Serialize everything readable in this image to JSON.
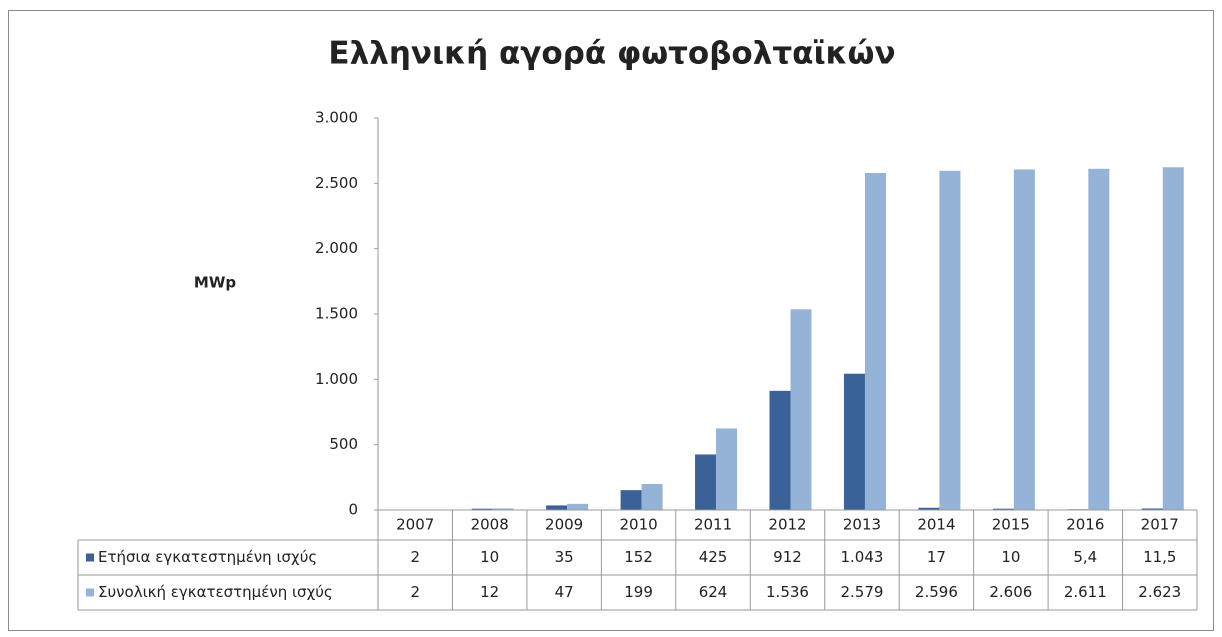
{
  "chart_data": {
    "type": "bar",
    "title": "Ελληνική αγορά φωτοβολταϊκών",
    "y_label": "MWp",
    "categories": [
      "2007",
      "2008",
      "2009",
      "2010",
      "2011",
      "2012",
      "2013",
      "2014",
      "2015",
      "2016",
      "2017"
    ],
    "series": [
      {
        "name": "Ετήσια εγκατεστημένη ισχύς",
        "color": "#3a6298",
        "values": [
          2,
          10,
          35,
          152,
          425,
          912,
          1043,
          17,
          10,
          5.4,
          11.5
        ],
        "value_labels": [
          "2",
          "10",
          "35",
          "152",
          "425",
          "912",
          "1.043",
          "17",
          "10",
          "5,4",
          "11,5"
        ]
      },
      {
        "name": "Συνολική εγκατεστημένη ισχύς",
        "color": "#95b3d7",
        "values": [
          2,
          12,
          47,
          199,
          624,
          1536,
          2579,
          2596,
          2606,
          2611,
          2623
        ],
        "value_labels": [
          "2",
          "12",
          "47",
          "199",
          "624",
          "1.536",
          "2.579",
          "2.596",
          "2.606",
          "2.611",
          "2.623"
        ]
      }
    ],
    "ylim": [
      0,
      3000
    ],
    "yticks": [
      0,
      500,
      {
        "value": 1000,
        "label": "1.000"
      },
      {
        "value": 1500,
        "label": "1.500"
      },
      {
        "value": 2000,
        "label": "2.000"
      },
      {
        "value": 2500,
        "label": "2.500"
      },
      {
        "value": 3000,
        "label": "3.000"
      }
    ]
  }
}
